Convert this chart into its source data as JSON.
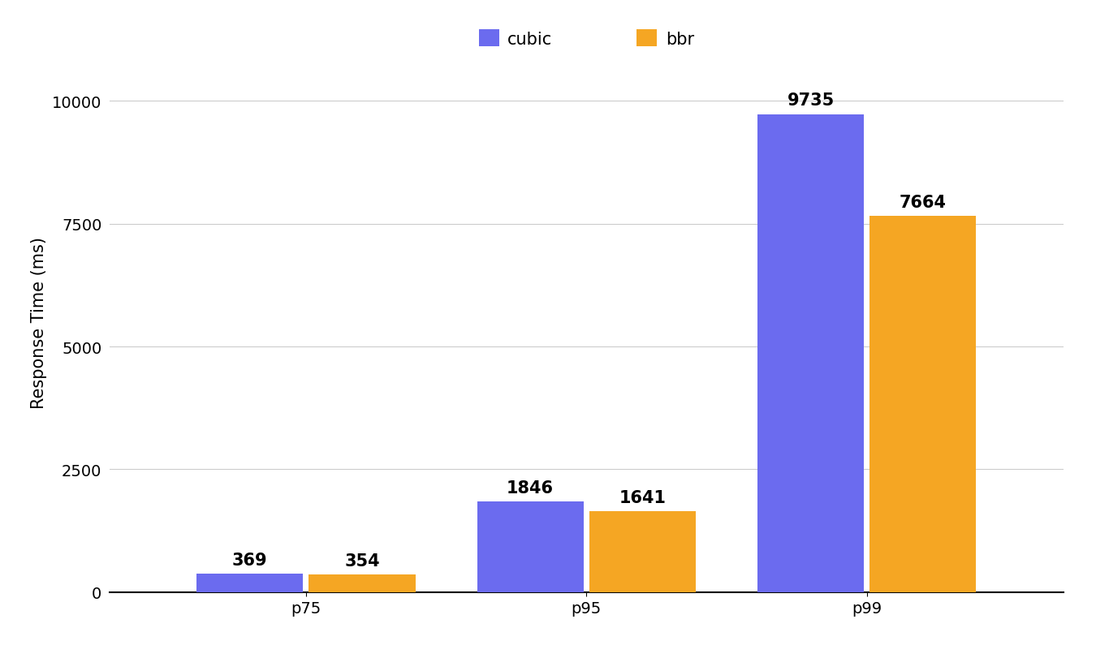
{
  "categories": [
    "p75",
    "p95",
    "p99"
  ],
  "cubic_values": [
    369,
    1846,
    9735
  ],
  "bbr_values": [
    354,
    1641,
    7664
  ],
  "cubic_color": "#6b6bef",
  "bbr_color": "#f5a623",
  "ylabel": "Response Time (ms)",
  "ylim": [
    0,
    11000
  ],
  "yticks": [
    0,
    2500,
    5000,
    7500,
    10000
  ],
  "bar_width": 0.38,
  "bar_gap": 0.02,
  "legend_labels": [
    "cubic",
    "bbr"
  ],
  "background_color": "#ffffff",
  "grid_color": "#cccccc",
  "label_fontsize": 15,
  "tick_fontsize": 14,
  "legend_fontsize": 15,
  "value_fontsize": 15
}
